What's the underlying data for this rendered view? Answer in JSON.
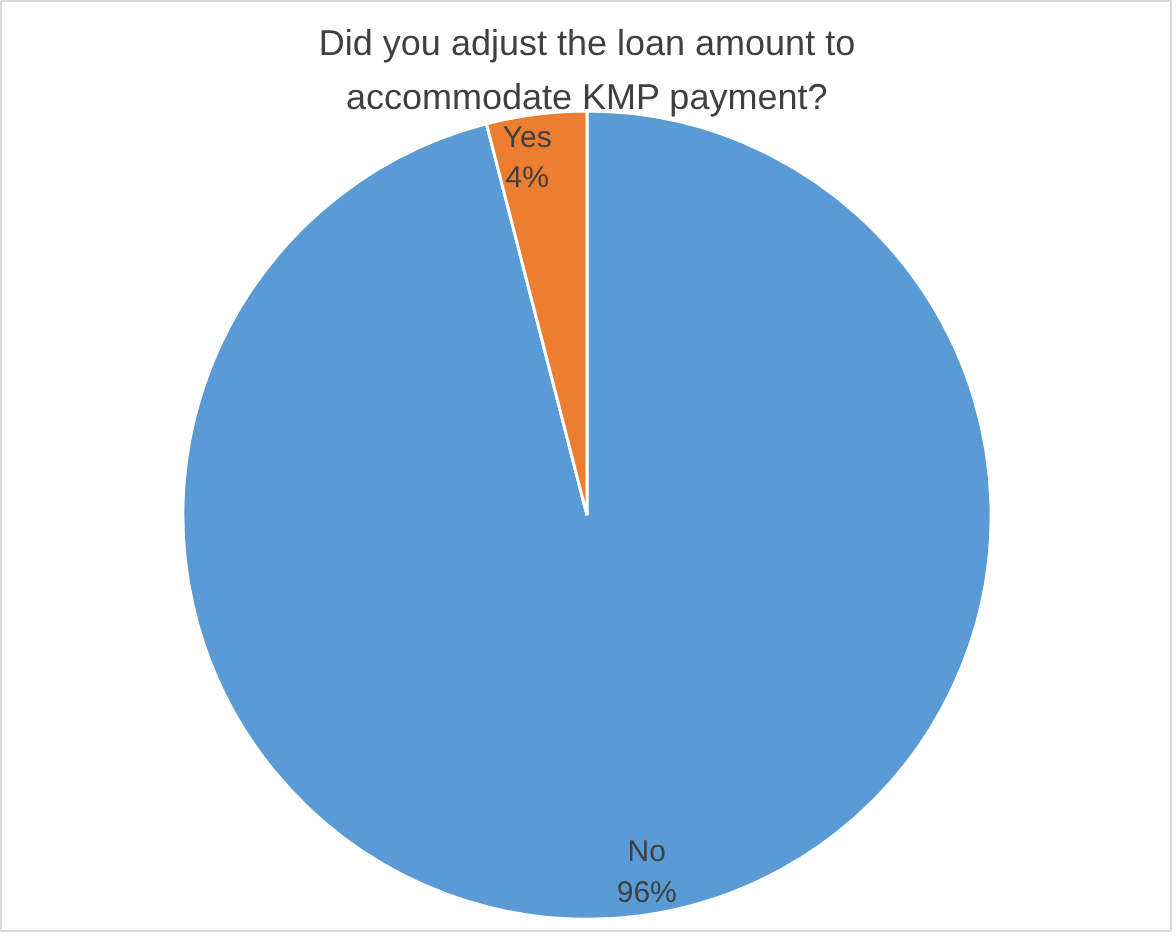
{
  "chart_data": {
    "type": "pie",
    "title": "Did you adjust the loan amount to\naccommodate KMP payment?",
    "categories": [
      "No",
      "Yes"
    ],
    "values": [
      96,
      4
    ],
    "colors": [
      "#5b9bd5",
      "#ed7d31"
    ],
    "value_labels": [
      "96%",
      "4%"
    ],
    "legend": false
  }
}
